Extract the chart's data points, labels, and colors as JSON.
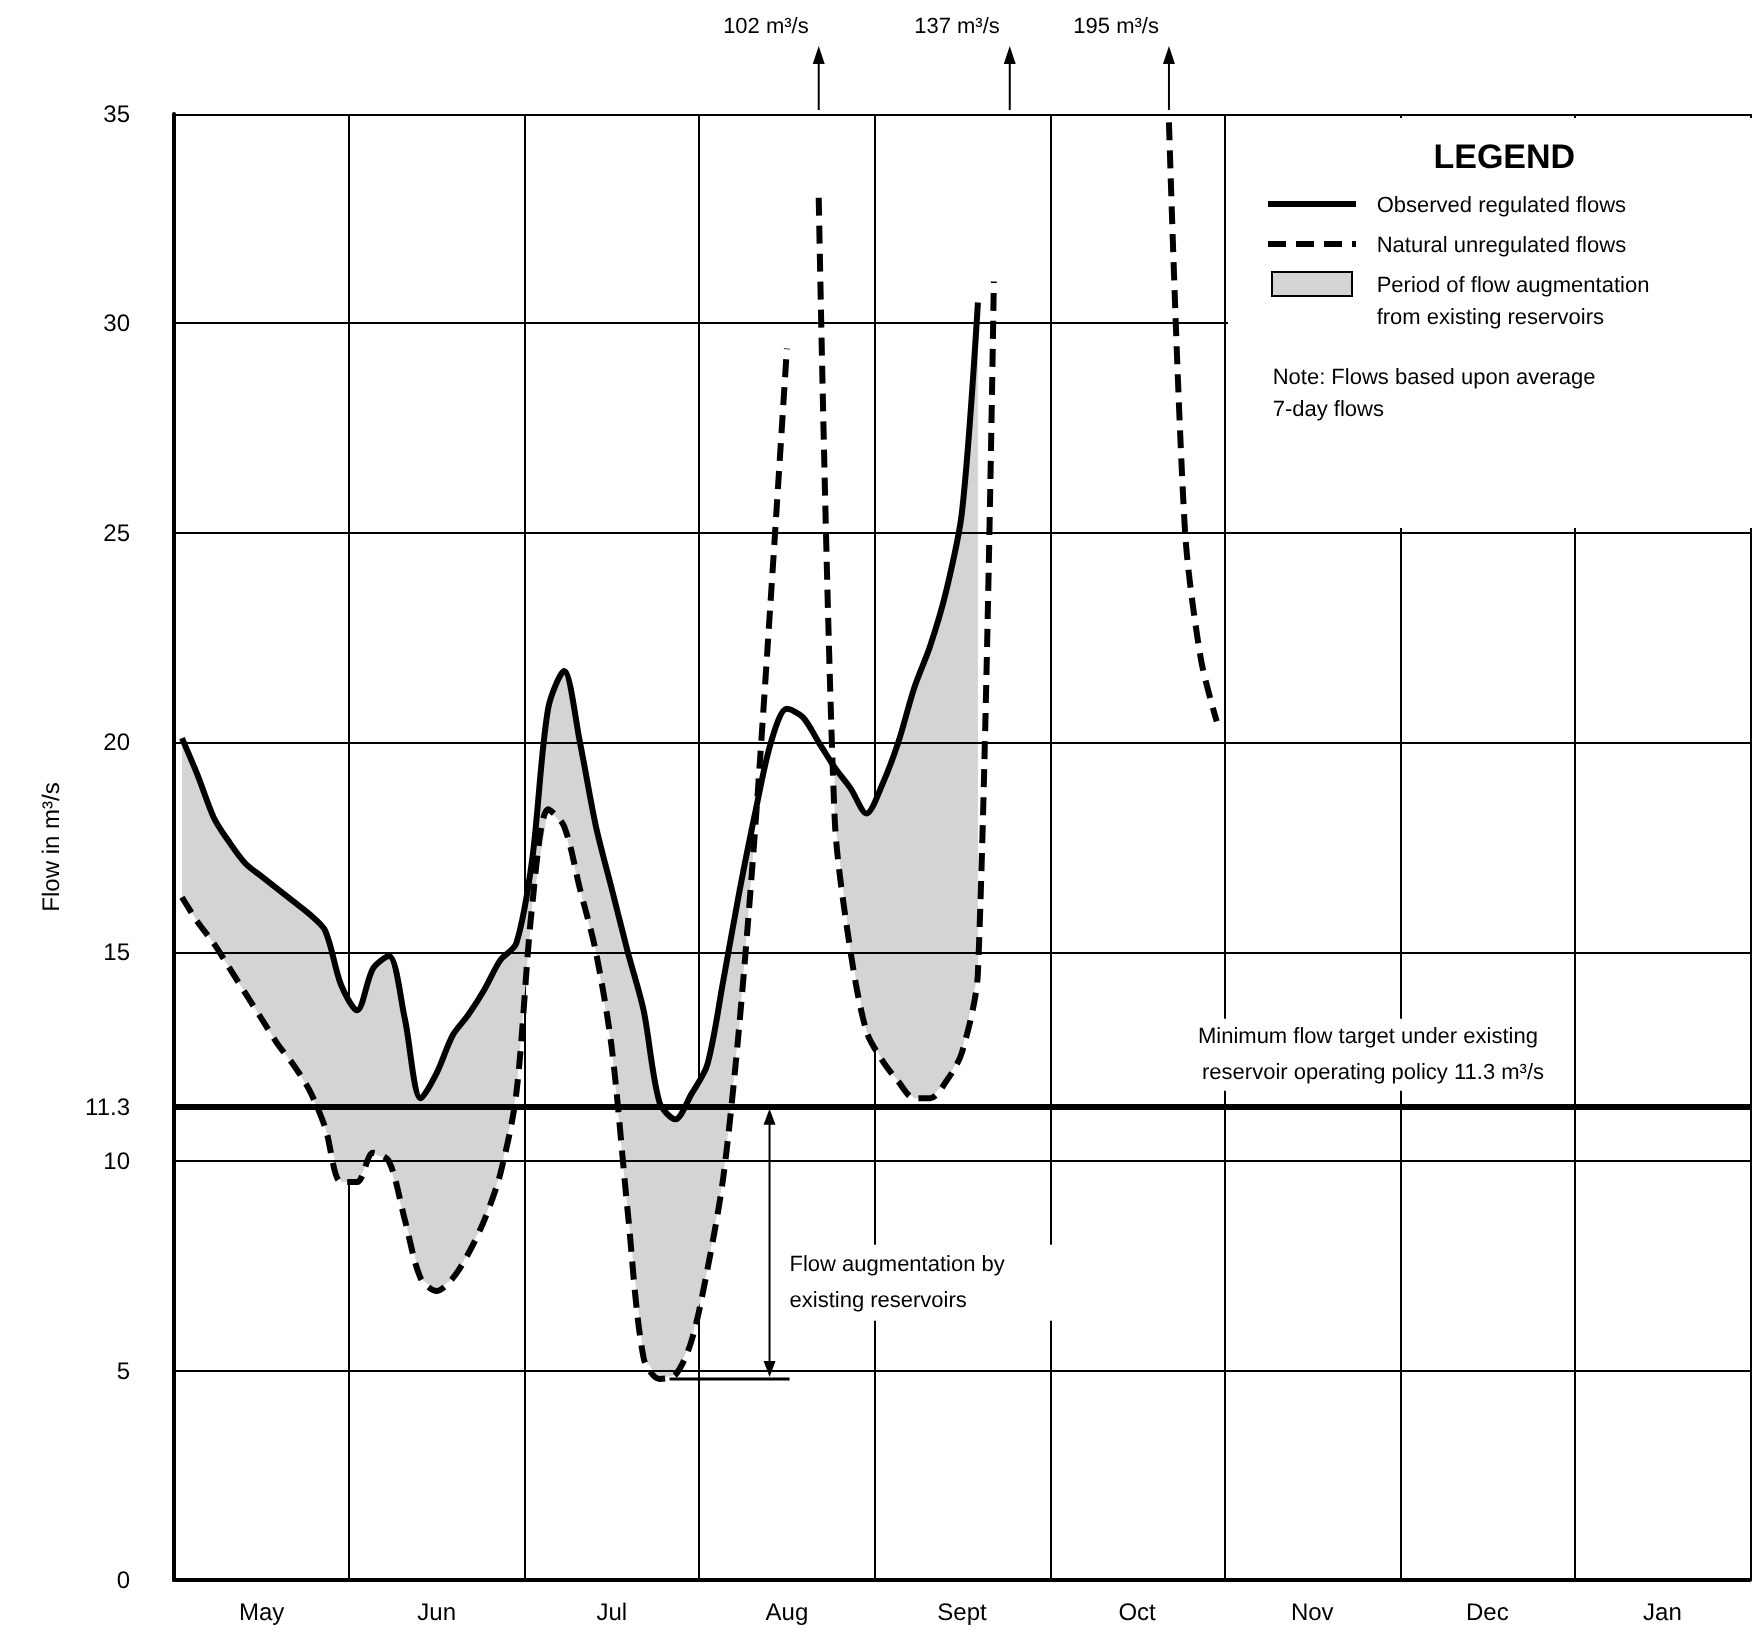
{
  "chart_data": {
    "type": "line",
    "ylabel": "Flow in m³/s",
    "legend_title": "LEGEND",
    "legend": "top right",
    "grid": true,
    "marker": "none",
    "categories": [
      null,
      null,
      null,
      null,
      null,
      "May",
      null,
      null,
      null,
      null,
      null,
      null,
      null,
      null,
      null,
      null,
      "Jun",
      null,
      null,
      null,
      null,
      null,
      null,
      null,
      null,
      null,
      null,
      "Jul",
      null,
      null,
      null,
      null,
      null,
      null,
      null,
      null,
      null,
      null,
      "Aug",
      null,
      null,
      null,
      null,
      null,
      null,
      null,
      null,
      null,
      null,
      "Sept",
      null,
      null,
      null,
      null,
      null,
      null,
      null,
      null,
      null,
      null,
      "Oct",
      null,
      null,
      null,
      null,
      null,
      null,
      null,
      null,
      null,
      null,
      "Nov",
      null,
      null,
      null,
      null,
      null,
      null,
      null,
      null,
      null,
      null,
      "Dec",
      null,
      null,
      null,
      null,
      null,
      null,
      null,
      null,
      null,
      null,
      "Jan",
      null,
      null,
      null,
      null,
      null
    ],
    "ylim": [
      0,
      35
    ],
    "yticks": [
      0,
      5,
      10,
      11.3,
      15,
      20,
      25,
      30,
      35
    ],
    "series": [
      {
        "name": "Observed regulated flows",
        "color": "#000000",
        "line_style": "solid",
        "values": [
          20.1,
          19.2,
          18.2,
          17.6,
          17.1,
          16.8,
          16.5,
          16.2,
          15.9,
          15.5,
          14.2,
          13.6,
          14.6,
          14.9,
          13.4,
          11.5,
          12.1,
          13.0,
          13.5,
          14.1,
          14.8,
          15.2,
          17.2,
          20.8,
          21.7,
          20.0,
          18.0,
          16.5,
          15.0,
          13.6,
          11.4,
          11.0,
          11.6,
          12.3,
          14.3,
          16.4,
          18.3,
          20.0,
          20.8,
          20.6,
          20.0,
          19.4,
          18.9,
          18.3,
          19.0,
          20.0,
          21.3,
          22.3,
          23.6,
          25.5,
          30.5,
          null,
          null,
          null,
          null,
          null,
          null,
          null,
          null,
          null,
          null,
          null,
          null,
          null,
          null,
          null,
          null,
          null,
          null,
          null,
          null,
          null,
          null,
          null,
          null,
          null,
          null,
          null,
          null,
          null,
          null,
          null,
          null,
          null,
          null,
          null,
          null,
          null,
          null,
          null,
          null,
          null,
          null,
          null,
          null,
          null,
          null,
          null,
          null
        ]
      },
      {
        "name": "Natural unregulated flows",
        "color": "#000000",
        "line_style": "dashed",
        "values": [
          16.3,
          15.7,
          15.2,
          14.6,
          14.0,
          13.4,
          12.8,
          12.3,
          11.7,
          10.8,
          9.5,
          9.5,
          10.2,
          10.0,
          8.6,
          7.2,
          6.9,
          7.2,
          7.8,
          8.6,
          9.7,
          11.6,
          16.1,
          18.4,
          18.0,
          16.5,
          15.0,
          12.7,
          8.8,
          5.3,
          4.8,
          4.9,
          5.7,
          7.4,
          9.6,
          13.2,
          17.9,
          23.5,
          29.4,
          null,
          33,
          18.2,
          15.0,
          13.1,
          12.4,
          11.9,
          11.5,
          11.5,
          11.9,
          12.6,
          14.5,
          31,
          null,
          null,
          null,
          null,
          null,
          null,
          null,
          null,
          null,
          null,
          34.8,
          25.1,
          22.0,
          20.5,
          null,
          null,
          null,
          null,
          null,
          null,
          null,
          null,
          null,
          null,
          null,
          null,
          null,
          null,
          null,
          null,
          null,
          null,
          null,
          null,
          null,
          null,
          null,
          null,
          null,
          null,
          null,
          null,
          null,
          null,
          null,
          null,
          null
        ]
      },
      {
        "name": "Period of flow augmentation from existing reservoirs",
        "type": "area",
        "color": "#d4d4d4",
        "values": [
          20.1,
          19.2,
          18.2,
          17.6,
          17.1,
          16.8,
          16.5,
          16.2,
          15.9,
          15.5,
          14.2,
          13.6,
          14.6,
          14.9,
          13.4,
          11.5,
          12.1,
          13.0,
          13.5,
          14.1,
          14.8,
          15.2,
          17.2,
          20.8,
          21.7,
          20.0,
          18.0,
          16.5,
          15.0,
          13.6,
          11.4,
          11.0,
          11.6,
          12.3,
          14.3,
          16.4,
          18.3,
          null,
          null,
          null,
          null,
          19.4,
          18.9,
          18.3,
          19.0,
          20.0,
          21.3,
          22.3,
          23.6,
          25.5,
          30.5,
          null,
          null,
          null,
          null,
          null,
          null,
          null,
          null,
          null,
          null,
          null,
          null,
          null,
          null,
          null,
          null,
          null,
          null,
          null,
          null,
          null,
          null,
          null,
          null,
          null,
          null,
          null,
          null,
          null,
          null,
          null,
          null,
          null,
          null,
          null,
          null,
          null,
          null,
          null,
          null,
          null,
          null,
          null,
          null,
          null,
          null,
          null,
          null
        ]
      }
    ],
    "ref_lines": [
      {
        "axis": "y",
        "value": 11.3,
        "label": "Minimum flow target under existing reservoir operating policy 11.3 m³/s"
      }
    ],
    "annotations": [
      "102 m³/s",
      "137 m³/s",
      "195 m³/s",
      "Flow augmentation by existing reservoirs",
      "Note: Flows based upon average 7-day flows"
    ]
  }
}
